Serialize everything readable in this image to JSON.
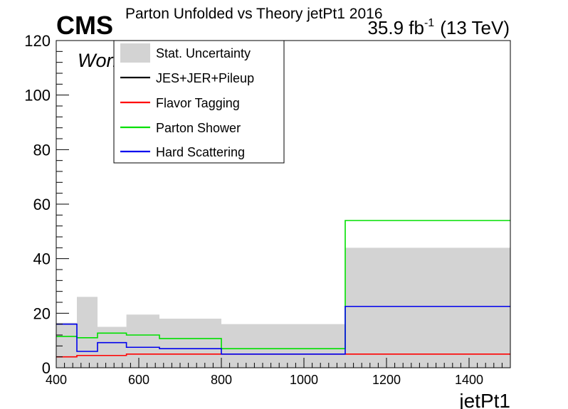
{
  "header": {
    "experiment": "CMS",
    "title": "Parton Unfolded vs Theory jetPt1 2016",
    "lumi": "35.9 fb",
    "lumi_sup": "-1",
    "energy": "(13 TeV)",
    "status": "Work in progress"
  },
  "chart_data": {
    "type": "histogram",
    "xlabel": "jetPt1",
    "ylabel": "",
    "xlim": [
      400,
      1500
    ],
    "ylim": [
      0,
      120
    ],
    "x_ticks": [
      400,
      600,
      800,
      1000,
      1200,
      1400
    ],
    "y_ticks": [
      0,
      20,
      40,
      60,
      80,
      100,
      120
    ],
    "bin_edges": [
      400,
      450,
      500,
      570,
      650,
      800,
      1100,
      1500
    ],
    "grid": false,
    "legend_position": "top-left",
    "series": [
      {
        "name": "Stat. Uncertainty",
        "style": "fill",
        "color": "#d3d3d3",
        "values": [
          16.5,
          26,
          15,
          19.5,
          18,
          16,
          44
        ]
      },
      {
        "name": "JES+JER+Pileup",
        "style": "line",
        "color": "#000000",
        "values": [
          null,
          null,
          null,
          null,
          null,
          null,
          null
        ]
      },
      {
        "name": "Flavor Tagging",
        "style": "line",
        "color": "#ff0000",
        "values": [
          4,
          4.5,
          4.5,
          5,
          5,
          5,
          5
        ]
      },
      {
        "name": "Parton Shower",
        "style": "line",
        "color": "#00e000",
        "values": [
          11.5,
          11,
          12.7,
          12,
          10.7,
          7,
          54
        ]
      },
      {
        "name": "Hard Scattering",
        "style": "line",
        "color": "#0000ee",
        "values": [
          16,
          6,
          9.2,
          7.5,
          7,
          5,
          22.5
        ]
      }
    ]
  }
}
